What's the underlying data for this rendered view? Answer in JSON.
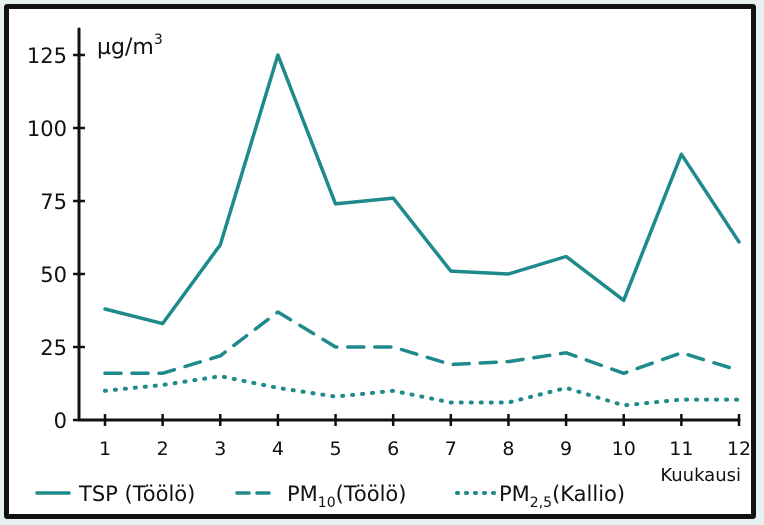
{
  "chart_data": {
    "type": "line",
    "ylabel": "µg/m³",
    "ylabel_parts": {
      "base": "µg/m",
      "sup": "3"
    },
    "xlabel": "Kuukausi",
    "x": [
      1,
      2,
      3,
      4,
      5,
      6,
      7,
      8,
      9,
      10,
      11,
      12
    ],
    "x_tick_labels": [
      "1",
      "2",
      "3",
      "4",
      "5",
      "6",
      "7",
      "8",
      "9",
      "10",
      "11",
      "12"
    ],
    "y_ticks": [
      0,
      25,
      50,
      75,
      100,
      125
    ],
    "y_tick_labels": [
      "0",
      "25",
      "50",
      "75",
      "100",
      "125"
    ],
    "ylim": [
      0,
      130
    ],
    "grid": false,
    "legend_position": "bottom",
    "series": [
      {
        "name": "TSP (Töölö)",
        "style": "solid",
        "color": "#1f8a8c",
        "values": [
          38,
          33,
          60,
          125,
          74,
          76,
          51,
          50,
          56,
          41,
          91,
          61
        ]
      },
      {
        "name": "PM10(Töölö)",
        "label_parts": {
          "base": "PM",
          "sub": "10",
          "rest": "(Töölö)"
        },
        "style": "dashed",
        "color": "#1f8a8c",
        "values": [
          16,
          16,
          22,
          37,
          25,
          25,
          19,
          20,
          23,
          16,
          23,
          17
        ]
      },
      {
        "name": "PM2,5(Kallio)",
        "label_parts": {
          "base": "PM",
          "sub": "2,5",
          "rest": "(Kallio)"
        },
        "style": "dotted",
        "color": "#1f8a8c",
        "values": [
          10,
          12,
          15,
          11,
          8,
          10,
          6,
          6,
          11,
          5,
          7,
          7
        ]
      }
    ]
  }
}
